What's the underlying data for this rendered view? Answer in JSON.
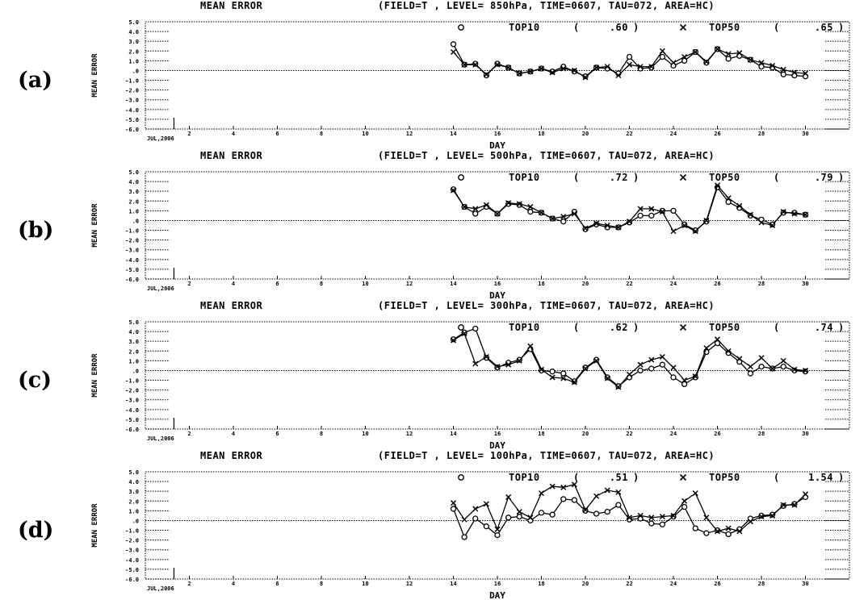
{
  "chart_data": [
    {
      "type": "line",
      "panel_label": "(a)",
      "title": "MEAN ERROR",
      "field_info": "(FIELD=T , LEVEL= 850hPa, TIME=0607, TAU=072, AREA=HC)",
      "xlabel": "DAY",
      "ylabel": "MEAN ERROR",
      "x_start_label": "JUL,2006",
      "xlim": [
        0,
        32
      ],
      "ylim": [
        -6,
        5
      ],
      "xticks": [
        2,
        4,
        6,
        8,
        10,
        12,
        14,
        16,
        18,
        20,
        22,
        24,
        26,
        28,
        30
      ],
      "yticks": [
        "5.0",
        "4.0",
        "3.0",
        "2.0",
        "1.0",
        ".0",
        "-1.0",
        "-2.0",
        "-3.0",
        "-4.0",
        "-5.0",
        "-6.0"
      ],
      "x": [
        14,
        14.5,
        15,
        15.5,
        16,
        16.5,
        17,
        17.5,
        18,
        18.5,
        19,
        19.5,
        20,
        20.5,
        21,
        21.5,
        22,
        22.5,
        23,
        23.5,
        24,
        24.5,
        25,
        25.5,
        26,
        26.5,
        27,
        27.5,
        28,
        28.5,
        29,
        29.5,
        30
      ],
      "series": [
        {
          "name": "TOP10",
          "marker": "o",
          "score": ".60",
          "values": [
            2.7,
            0.6,
            0.7,
            -0.5,
            0.7,
            0.3,
            -0.3,
            -0.1,
            0.2,
            -0.1,
            0.4,
            -0.1,
            -0.6,
            0.3,
            0.2,
            -0.3,
            1.4,
            0.2,
            0.3,
            1.4,
            0.5,
            1.0,
            1.9,
            0.8,
            2.2,
            1.2,
            1.5,
            1.1,
            0.4,
            0.3,
            -0.4,
            -0.5,
            -0.6
          ]
        },
        {
          "name": "TOP50",
          "marker": "x",
          "score": ".65",
          "values": [
            1.9,
            0.6,
            0.6,
            -0.4,
            0.6,
            0.3,
            -0.3,
            -0.1,
            0.2,
            -0.2,
            0.2,
            0.0,
            -0.7,
            0.3,
            0.4,
            -0.5,
            0.6,
            0.4,
            0.4,
            2.0,
            0.8,
            1.4,
            1.9,
            0.9,
            2.2,
            1.7,
            1.8,
            1.1,
            0.8,
            0.5,
            0.1,
            -0.2,
            -0.3
          ]
        }
      ]
    },
    {
      "type": "line",
      "panel_label": "(b)",
      "title": "MEAN ERROR",
      "field_info": "(FIELD=T , LEVEL= 500hPa, TIME=0607, TAU=072, AREA=HC)",
      "xlabel": "DAY",
      "ylabel": "MEAN ERROR",
      "x_start_label": "JUL,2006",
      "xlim": [
        0,
        32
      ],
      "ylim": [
        -6,
        5
      ],
      "xticks": [
        2,
        4,
        6,
        8,
        10,
        12,
        14,
        16,
        18,
        20,
        22,
        24,
        26,
        28,
        30
      ],
      "yticks": [
        "5.0",
        "4.0",
        "3.0",
        "2.0",
        "1.0",
        ".0",
        "-1.0",
        "-2.0",
        "-3.0",
        "-4.0",
        "-5.0",
        "-6.0"
      ],
      "x": [
        14,
        14.5,
        15,
        15.5,
        16,
        16.5,
        17,
        17.5,
        18,
        18.5,
        19,
        19.5,
        20,
        20.5,
        21,
        21.5,
        22,
        22.5,
        23,
        23.5,
        24,
        24.5,
        25,
        25.5,
        26,
        26.5,
        27,
        27.5,
        28,
        28.5,
        29,
        29.5,
        30
      ],
      "series": [
        {
          "name": "TOP10",
          "marker": "o",
          "score": ".72",
          "values": [
            3.2,
            1.4,
            0.7,
            1.4,
            0.7,
            1.7,
            1.6,
            0.9,
            0.8,
            0.2,
            -0.1,
            0.9,
            -0.9,
            -0.4,
            -0.7,
            -0.7,
            -0.2,
            0.5,
            0.5,
            1.0,
            1.0,
            -0.4,
            -1.0,
            -0.1,
            3.4,
            1.9,
            1.3,
            0.5,
            0.1,
            -0.4,
            0.8,
            0.8,
            0.6
          ]
        },
        {
          "name": "TOP50",
          "marker": "x",
          "score": ".79",
          "values": [
            3.1,
            1.4,
            1.2,
            1.6,
            0.7,
            1.8,
            1.7,
            1.4,
            0.8,
            0.2,
            0.4,
            0.7,
            -0.8,
            -0.3,
            -0.5,
            -0.7,
            -0.1,
            1.2,
            1.2,
            0.9,
            -1.1,
            -0.5,
            -1.1,
            0.0,
            3.6,
            2.3,
            1.5,
            0.6,
            -0.2,
            -0.5,
            0.9,
            0.7,
            0.6
          ]
        }
      ]
    },
    {
      "type": "line",
      "panel_label": "(c)",
      "title": "MEAN ERROR",
      "field_info": "(FIELD=T , LEVEL= 300hPa, TIME=0607, TAU=072, AREA=HC)",
      "xlabel": "DAY",
      "ylabel": "MEAN ERROR",
      "x_start_label": "JUL,2006",
      "xlim": [
        0,
        32
      ],
      "ylim": [
        -6,
        5
      ],
      "xticks": [
        2,
        4,
        6,
        8,
        10,
        12,
        14,
        16,
        18,
        20,
        22,
        24,
        26,
        28,
        30
      ],
      "yticks": [
        "5.0",
        "4.0",
        "3.0",
        "2.0",
        "1.0",
        ".0",
        "-1.0",
        "-2.0",
        "-3.0",
        "-4.0",
        "-5.0",
        "-6.0"
      ],
      "x": [
        14,
        14.5,
        15,
        15.5,
        16,
        16.5,
        17,
        17.5,
        18,
        18.5,
        19,
        19.5,
        20,
        20.5,
        21,
        21.5,
        22,
        22.5,
        23,
        23.5,
        24,
        24.5,
        25,
        25.5,
        26,
        26.5,
        27,
        27.5,
        28,
        28.5,
        29,
        29.5,
        30
      ],
      "series": [
        {
          "name": "TOP10",
          "marker": "o",
          "score": ".62",
          "values": [
            3.2,
            3.9,
            4.3,
            1.3,
            0.3,
            0.8,
            1.1,
            2.2,
            0.0,
            -0.1,
            -0.3,
            -1.1,
            0.3,
            1.1,
            -0.7,
            -1.6,
            -0.7,
            0.0,
            0.2,
            0.6,
            -0.7,
            -1.4,
            -0.7,
            1.9,
            2.8,
            1.8,
            0.9,
            -0.3,
            0.4,
            0.2,
            0.4,
            0.0,
            -0.1
          ]
        },
        {
          "name": "TOP50",
          "marker": "x",
          "score": ".74",
          "values": [
            3.1,
            3.8,
            0.7,
            1.4,
            0.4,
            0.6,
            1.0,
            2.5,
            0.1,
            -0.7,
            -0.8,
            -1.2,
            0.2,
            1.0,
            -0.8,
            -1.7,
            -0.4,
            0.6,
            1.1,
            1.4,
            0.3,
            -1.0,
            -0.6,
            2.3,
            3.2,
            2.0,
            1.2,
            0.4,
            1.3,
            0.2,
            1.0,
            0.1,
            0.0
          ]
        }
      ]
    },
    {
      "type": "line",
      "panel_label": "(d)",
      "title": "MEAN ERROR",
      "field_info": "(FIELD=T , LEVEL= 100hPa, TIME=0607, TAU=072, AREA=HC)",
      "xlabel": "DAY",
      "ylabel": "MEAN ERROR",
      "x_start_label": "JUL,2006",
      "xlim": [
        0,
        32
      ],
      "ylim": [
        -6,
        5
      ],
      "xticks": [
        2,
        4,
        6,
        8,
        10,
        12,
        14,
        16,
        18,
        20,
        22,
        24,
        26,
        28,
        30
      ],
      "yticks": [
        "5.0",
        "4.0",
        "3.0",
        "2.0",
        "1.0",
        ".0",
        "-1.0",
        "-2.0",
        "-3.0",
        "-4.0",
        "-5.0",
        "-6.0"
      ],
      "x": [
        14,
        14.5,
        15,
        15.5,
        16,
        16.5,
        17,
        17.5,
        18,
        18.5,
        19,
        19.5,
        20,
        20.5,
        21,
        21.5,
        22,
        22.5,
        23,
        23.5,
        24,
        24.5,
        25,
        25.5,
        26,
        26.5,
        27,
        27.5,
        28,
        28.5,
        29,
        29.5,
        30
      ],
      "series": [
        {
          "name": "TOP10",
          "marker": "o",
          "score": ".51",
          "values": [
            1.2,
            -1.7,
            0.2,
            -0.6,
            -1.5,
            0.3,
            0.4,
            0.0,
            0.8,
            0.6,
            2.2,
            2.1,
            1.0,
            0.7,
            0.9,
            1.6,
            0.1,
            0.2,
            -0.3,
            -0.4,
            0.4,
            1.4,
            -0.8,
            -1.3,
            -1.0,
            -1.4,
            -0.9,
            0.2,
            0.5,
            0.6,
            1.5,
            1.7,
            2.4
          ]
        },
        {
          "name": "TOP50",
          "marker": "x",
          "score": "1.54",
          "values": [
            1.8,
            0.1,
            1.2,
            1.7,
            -0.9,
            2.4,
            0.9,
            0.3,
            2.8,
            3.5,
            3.4,
            3.7,
            1.1,
            2.5,
            3.1,
            2.9,
            0.3,
            0.5,
            0.3,
            0.4,
            0.5,
            2.0,
            2.8,
            0.3,
            -1.1,
            -0.8,
            -1.1,
            -0.1,
            0.4,
            0.5,
            1.6,
            1.6,
            2.7
          ]
        }
      ]
    }
  ]
}
